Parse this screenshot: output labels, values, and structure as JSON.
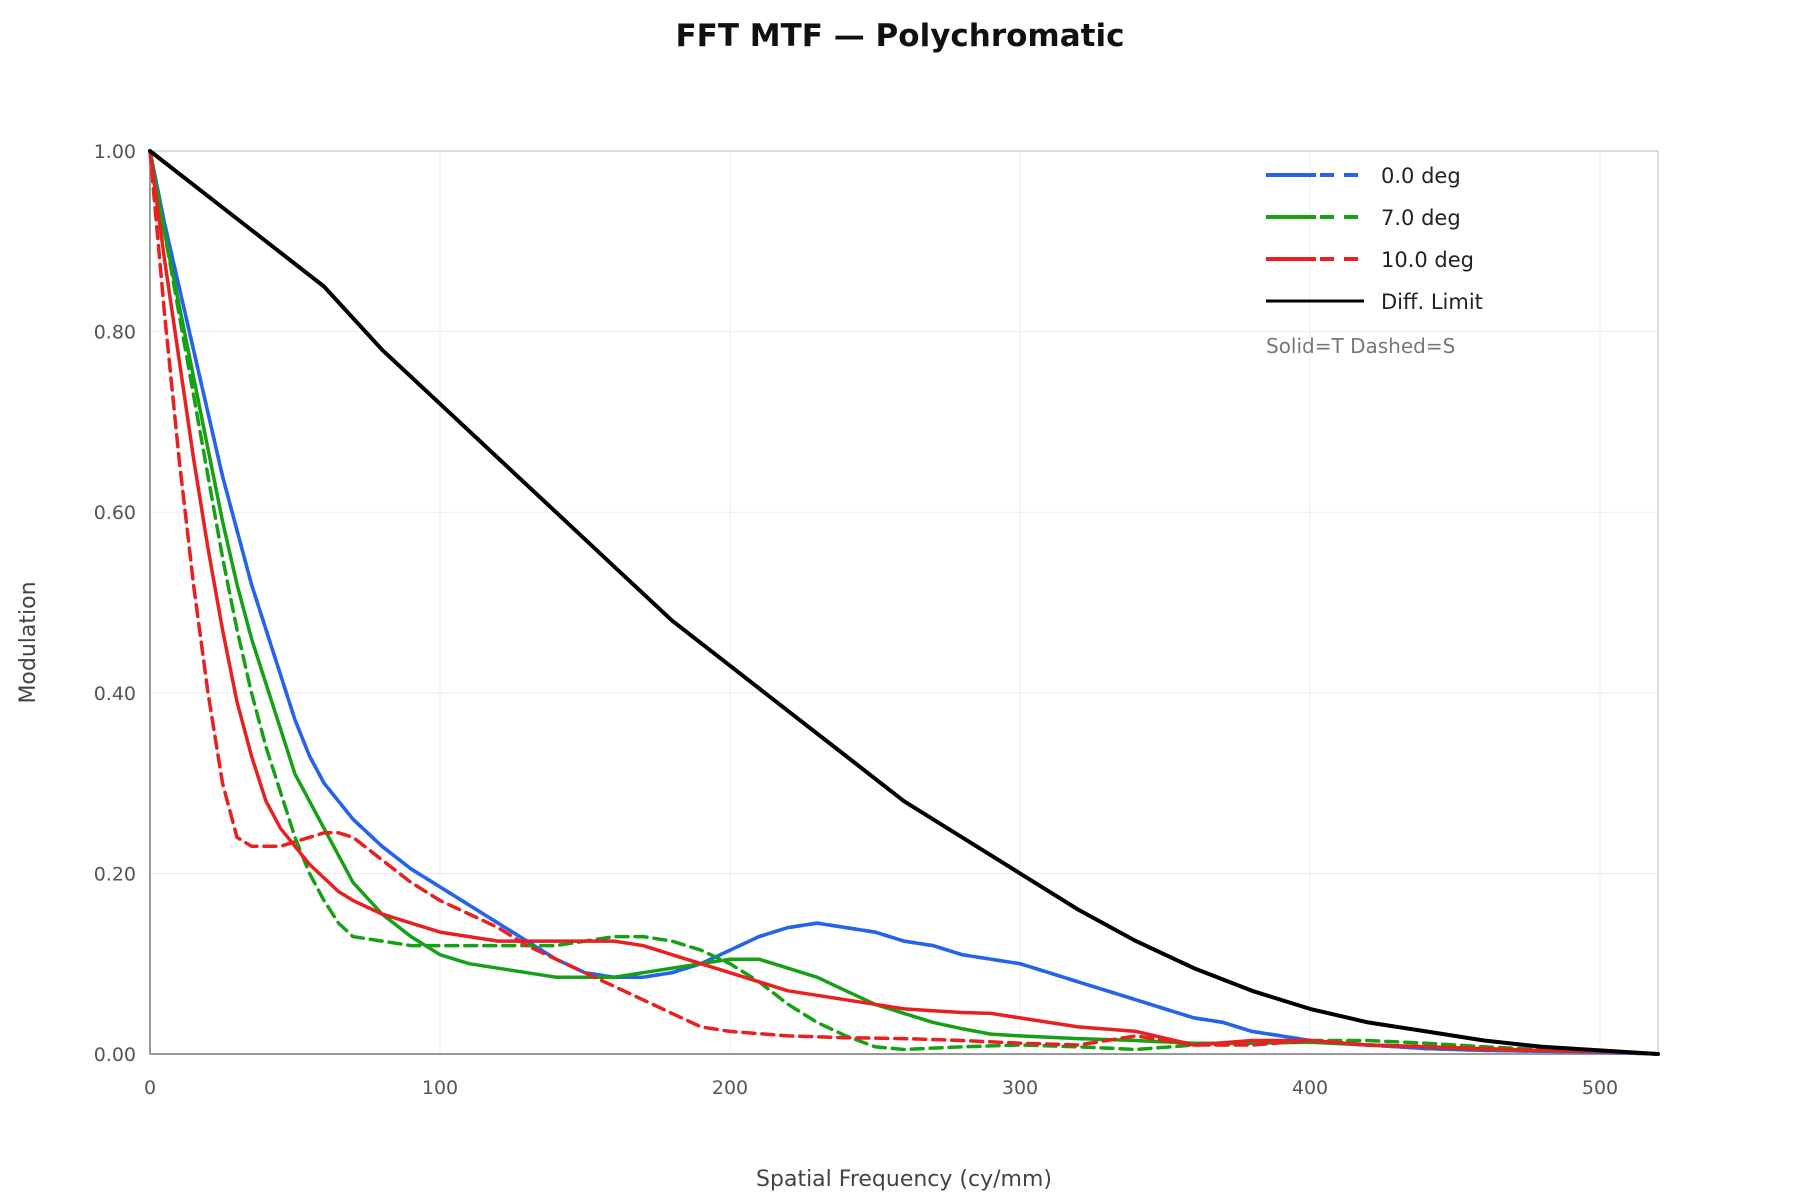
{
  "chart_data": {
    "type": "line",
    "title": "FFT MTF — Polychromatic",
    "xlabel": "Spatial Frequency (cy/mm)",
    "ylabel": "Modulation",
    "xlim": [
      0,
      520
    ],
    "ylim": [
      0,
      1
    ],
    "x_ticks": [
      0,
      100,
      200,
      300,
      400,
      500
    ],
    "x_tick_labels": [
      "0",
      "100",
      "200",
      "300",
      "400",
      "500"
    ],
    "y_ticks": [
      0,
      0.2,
      0.4,
      0.6,
      0.8,
      1.0
    ],
    "y_tick_labels": [
      "0.00",
      "0.20",
      "0.40",
      "0.60",
      "0.80",
      "1.00"
    ],
    "grid": true,
    "legend_position": "top-right",
    "legend_note": "Solid=T Dashed=S",
    "legend": [
      {
        "label": "0.0 deg",
        "color": "#2563eb",
        "style": "solid+dashed"
      },
      {
        "label": "7.0 deg",
        "color": "#16a016",
        "style": "solid+dashed"
      },
      {
        "label": "10.0 deg",
        "color": "#e82020",
        "style": "solid+dashed"
      },
      {
        "label": "Diff. Limit",
        "color": "#000000",
        "style": "solid"
      }
    ],
    "series": [
      {
        "name": "0.0 deg",
        "color": "#2563eb",
        "dash": false,
        "x": [
          0,
          5,
          10,
          15,
          20,
          25,
          30,
          35,
          40,
          45,
          50,
          55,
          60,
          70,
          80,
          90,
          100,
          110,
          120,
          130,
          140,
          150,
          160,
          170,
          180,
          190,
          200,
          210,
          220,
          230,
          240,
          250,
          260,
          270,
          280,
          290,
          300,
          310,
          320,
          330,
          340,
          350,
          360,
          370,
          380,
          390,
          400,
          410,
          420,
          430,
          440,
          460,
          480,
          500,
          520
        ],
        "y": [
          1.0,
          0.92,
          0.85,
          0.78,
          0.71,
          0.64,
          0.58,
          0.52,
          0.47,
          0.42,
          0.37,
          0.33,
          0.3,
          0.26,
          0.23,
          0.205,
          0.185,
          0.165,
          0.145,
          0.125,
          0.105,
          0.09,
          0.085,
          0.085,
          0.09,
          0.1,
          0.115,
          0.13,
          0.14,
          0.145,
          0.14,
          0.135,
          0.125,
          0.12,
          0.11,
          0.105,
          0.1,
          0.09,
          0.08,
          0.07,
          0.06,
          0.05,
          0.04,
          0.035,
          0.025,
          0.02,
          0.015,
          0.012,
          0.01,
          0.008,
          0.006,
          0.004,
          0.003,
          0.002,
          0.0
        ]
      },
      {
        "name": "0.0 deg",
        "color": "#2563eb",
        "dash": true,
        "x": [
          0,
          5,
          10,
          15,
          20,
          25,
          30,
          35,
          40,
          45,
          50,
          55,
          60,
          70,
          80,
          90,
          100,
          110,
          120,
          130,
          140,
          150,
          160,
          170,
          180,
          190,
          200,
          210,
          220,
          230,
          240,
          250,
          260,
          270,
          280,
          290,
          300,
          310,
          320,
          330,
          340,
          350,
          360,
          370,
          380,
          390,
          400,
          410,
          420,
          430,
          440,
          460,
          480,
          500,
          520
        ],
        "y": [
          1.0,
          0.92,
          0.85,
          0.78,
          0.71,
          0.64,
          0.58,
          0.52,
          0.47,
          0.42,
          0.37,
          0.33,
          0.3,
          0.26,
          0.23,
          0.205,
          0.185,
          0.165,
          0.145,
          0.125,
          0.105,
          0.09,
          0.085,
          0.085,
          0.09,
          0.1,
          0.115,
          0.13,
          0.14,
          0.145,
          0.14,
          0.135,
          0.125,
          0.12,
          0.11,
          0.105,
          0.1,
          0.09,
          0.08,
          0.07,
          0.06,
          0.05,
          0.04,
          0.035,
          0.025,
          0.02,
          0.015,
          0.012,
          0.01,
          0.008,
          0.006,
          0.004,
          0.003,
          0.002,
          0.0
        ]
      },
      {
        "name": "7.0 deg",
        "color": "#16a016",
        "dash": false,
        "x": [
          0,
          5,
          10,
          15,
          20,
          25,
          30,
          35,
          40,
          45,
          50,
          55,
          60,
          65,
          70,
          80,
          90,
          100,
          110,
          120,
          130,
          140,
          150,
          160,
          170,
          180,
          190,
          200,
          210,
          220,
          230,
          240,
          250,
          260,
          270,
          280,
          290,
          300,
          320,
          340,
          360,
          380,
          400,
          420,
          440,
          460,
          480,
          500,
          520
        ],
        "y": [
          1.0,
          0.91,
          0.83,
          0.75,
          0.67,
          0.59,
          0.52,
          0.46,
          0.41,
          0.36,
          0.31,
          0.28,
          0.25,
          0.22,
          0.19,
          0.155,
          0.13,
          0.11,
          0.1,
          0.095,
          0.09,
          0.085,
          0.085,
          0.085,
          0.09,
          0.095,
          0.1,
          0.105,
          0.105,
          0.095,
          0.085,
          0.07,
          0.055,
          0.045,
          0.035,
          0.028,
          0.022,
          0.02,
          0.017,
          0.015,
          0.012,
          0.012,
          0.013,
          0.01,
          0.008,
          0.005,
          0.004,
          0.003,
          0.0
        ]
      },
      {
        "name": "7.0 deg",
        "color": "#16a016",
        "dash": true,
        "x": [
          0,
          5,
          10,
          15,
          20,
          25,
          30,
          35,
          40,
          45,
          50,
          55,
          60,
          65,
          70,
          80,
          90,
          100,
          110,
          120,
          130,
          140,
          150,
          160,
          170,
          180,
          190,
          200,
          210,
          220,
          230,
          240,
          250,
          260,
          280,
          300,
          320,
          340,
          360,
          380,
          400,
          420,
          440,
          460,
          480,
          500,
          520
        ],
        "y": [
          1.0,
          0.91,
          0.82,
          0.73,
          0.64,
          0.55,
          0.47,
          0.4,
          0.34,
          0.29,
          0.24,
          0.2,
          0.17,
          0.145,
          0.13,
          0.125,
          0.12,
          0.12,
          0.12,
          0.12,
          0.12,
          0.12,
          0.125,
          0.13,
          0.13,
          0.125,
          0.115,
          0.1,
          0.08,
          0.055,
          0.035,
          0.02,
          0.008,
          0.005,
          0.008,
          0.01,
          0.008,
          0.005,
          0.01,
          0.012,
          0.015,
          0.015,
          0.012,
          0.008,
          0.005,
          0.003,
          0.0
        ]
      },
      {
        "name": "10.0 deg",
        "color": "#e82020",
        "dash": false,
        "x": [
          0,
          5,
          10,
          15,
          20,
          25,
          30,
          35,
          40,
          45,
          50,
          55,
          60,
          65,
          70,
          80,
          90,
          100,
          110,
          120,
          130,
          140,
          150,
          160,
          170,
          180,
          190,
          200,
          210,
          220,
          230,
          240,
          250,
          260,
          270,
          280,
          290,
          300,
          320,
          340,
          360,
          380,
          400,
          420,
          440,
          460,
          480,
          500,
          520
        ],
        "y": [
          1.0,
          0.88,
          0.77,
          0.66,
          0.56,
          0.47,
          0.39,
          0.33,
          0.28,
          0.25,
          0.23,
          0.21,
          0.195,
          0.18,
          0.17,
          0.155,
          0.145,
          0.135,
          0.13,
          0.125,
          0.125,
          0.125,
          0.125,
          0.125,
          0.12,
          0.11,
          0.1,
          0.09,
          0.08,
          0.07,
          0.065,
          0.06,
          0.055,
          0.05,
          0.048,
          0.046,
          0.045,
          0.04,
          0.03,
          0.025,
          0.01,
          0.015,
          0.015,
          0.01,
          0.008,
          0.006,
          0.004,
          0.003,
          0.0
        ]
      },
      {
        "name": "10.0 deg",
        "color": "#e82020",
        "dash": true,
        "x": [
          0,
          5,
          10,
          15,
          20,
          25,
          30,
          35,
          40,
          45,
          50,
          55,
          60,
          65,
          70,
          80,
          90,
          100,
          110,
          120,
          130,
          140,
          150,
          160,
          170,
          180,
          190,
          200,
          220,
          240,
          260,
          280,
          300,
          320,
          340,
          360,
          380,
          400,
          420,
          440,
          460,
          480,
          500,
          520
        ],
        "y": [
          1.0,
          0.82,
          0.66,
          0.52,
          0.4,
          0.3,
          0.24,
          0.23,
          0.23,
          0.23,
          0.235,
          0.24,
          0.245,
          0.245,
          0.24,
          0.215,
          0.19,
          0.17,
          0.155,
          0.14,
          0.12,
          0.105,
          0.09,
          0.075,
          0.06,
          0.045,
          0.03,
          0.025,
          0.02,
          0.018,
          0.017,
          0.015,
          0.012,
          0.01,
          0.02,
          0.01,
          0.01,
          0.015,
          0.01,
          0.008,
          0.005,
          0.004,
          0.003,
          0.0
        ]
      },
      {
        "name": "Diff. Limit",
        "color": "#000000",
        "dash": false,
        "x": [
          0,
          20,
          40,
          60,
          80,
          100,
          120,
          140,
          160,
          180,
          200,
          220,
          240,
          260,
          280,
          300,
          320,
          340,
          360,
          380,
          400,
          420,
          440,
          460,
          480,
          500,
          520
        ],
        "y": [
          1.0,
          0.95,
          0.9,
          0.85,
          0.78,
          0.72,
          0.66,
          0.6,
          0.54,
          0.48,
          0.43,
          0.38,
          0.33,
          0.28,
          0.24,
          0.2,
          0.16,
          0.125,
          0.095,
          0.07,
          0.05,
          0.035,
          0.025,
          0.015,
          0.008,
          0.004,
          0.0
        ]
      }
    ]
  }
}
